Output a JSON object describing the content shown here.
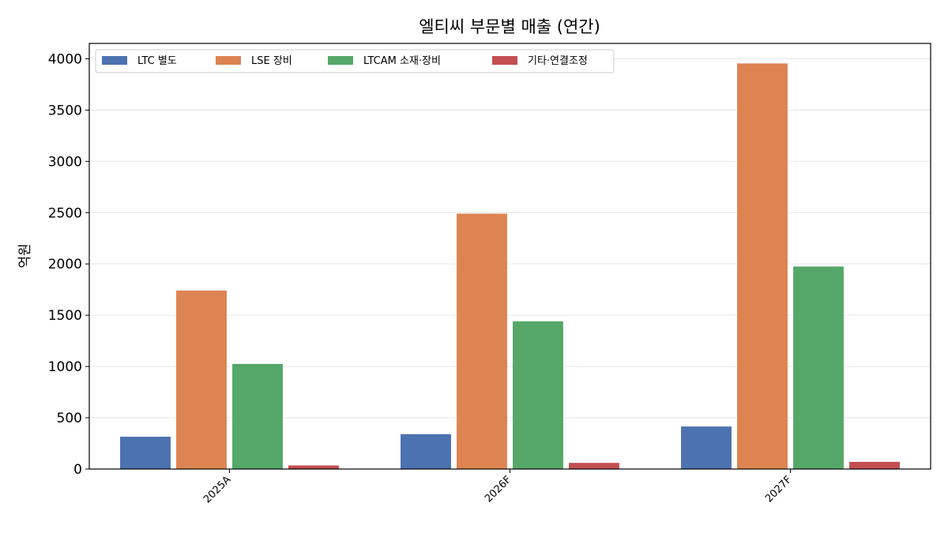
{
  "chart_data": {
    "type": "bar",
    "title": "엘티씨 부문별 매출 (연간)",
    "xlabel": "",
    "ylabel": "억원",
    "ylim": [
      0,
      4150
    ],
    "yticks": [
      0,
      500,
      1000,
      1500,
      2000,
      2500,
      3000,
      3500,
      4000
    ],
    "grid": "y",
    "legend_position": "top-left",
    "categories": [
      "2025A",
      "2026F",
      "2027F"
    ],
    "series": [
      {
        "name": "LTC 별도",
        "color": "#4c72b0",
        "values": [
          315,
          340,
          415
        ]
      },
      {
        "name": "LSE 장비",
        "color": "#dd8452",
        "values": [
          1740,
          2490,
          3955
        ]
      },
      {
        "name": "LTCAM 소재·장비",
        "color": "#55a868",
        "values": [
          1025,
          1440,
          1975
        ]
      },
      {
        "name": "기타·연결조정",
        "color": "#c44e52",
        "values": [
          35,
          60,
          70
        ]
      }
    ]
  }
}
